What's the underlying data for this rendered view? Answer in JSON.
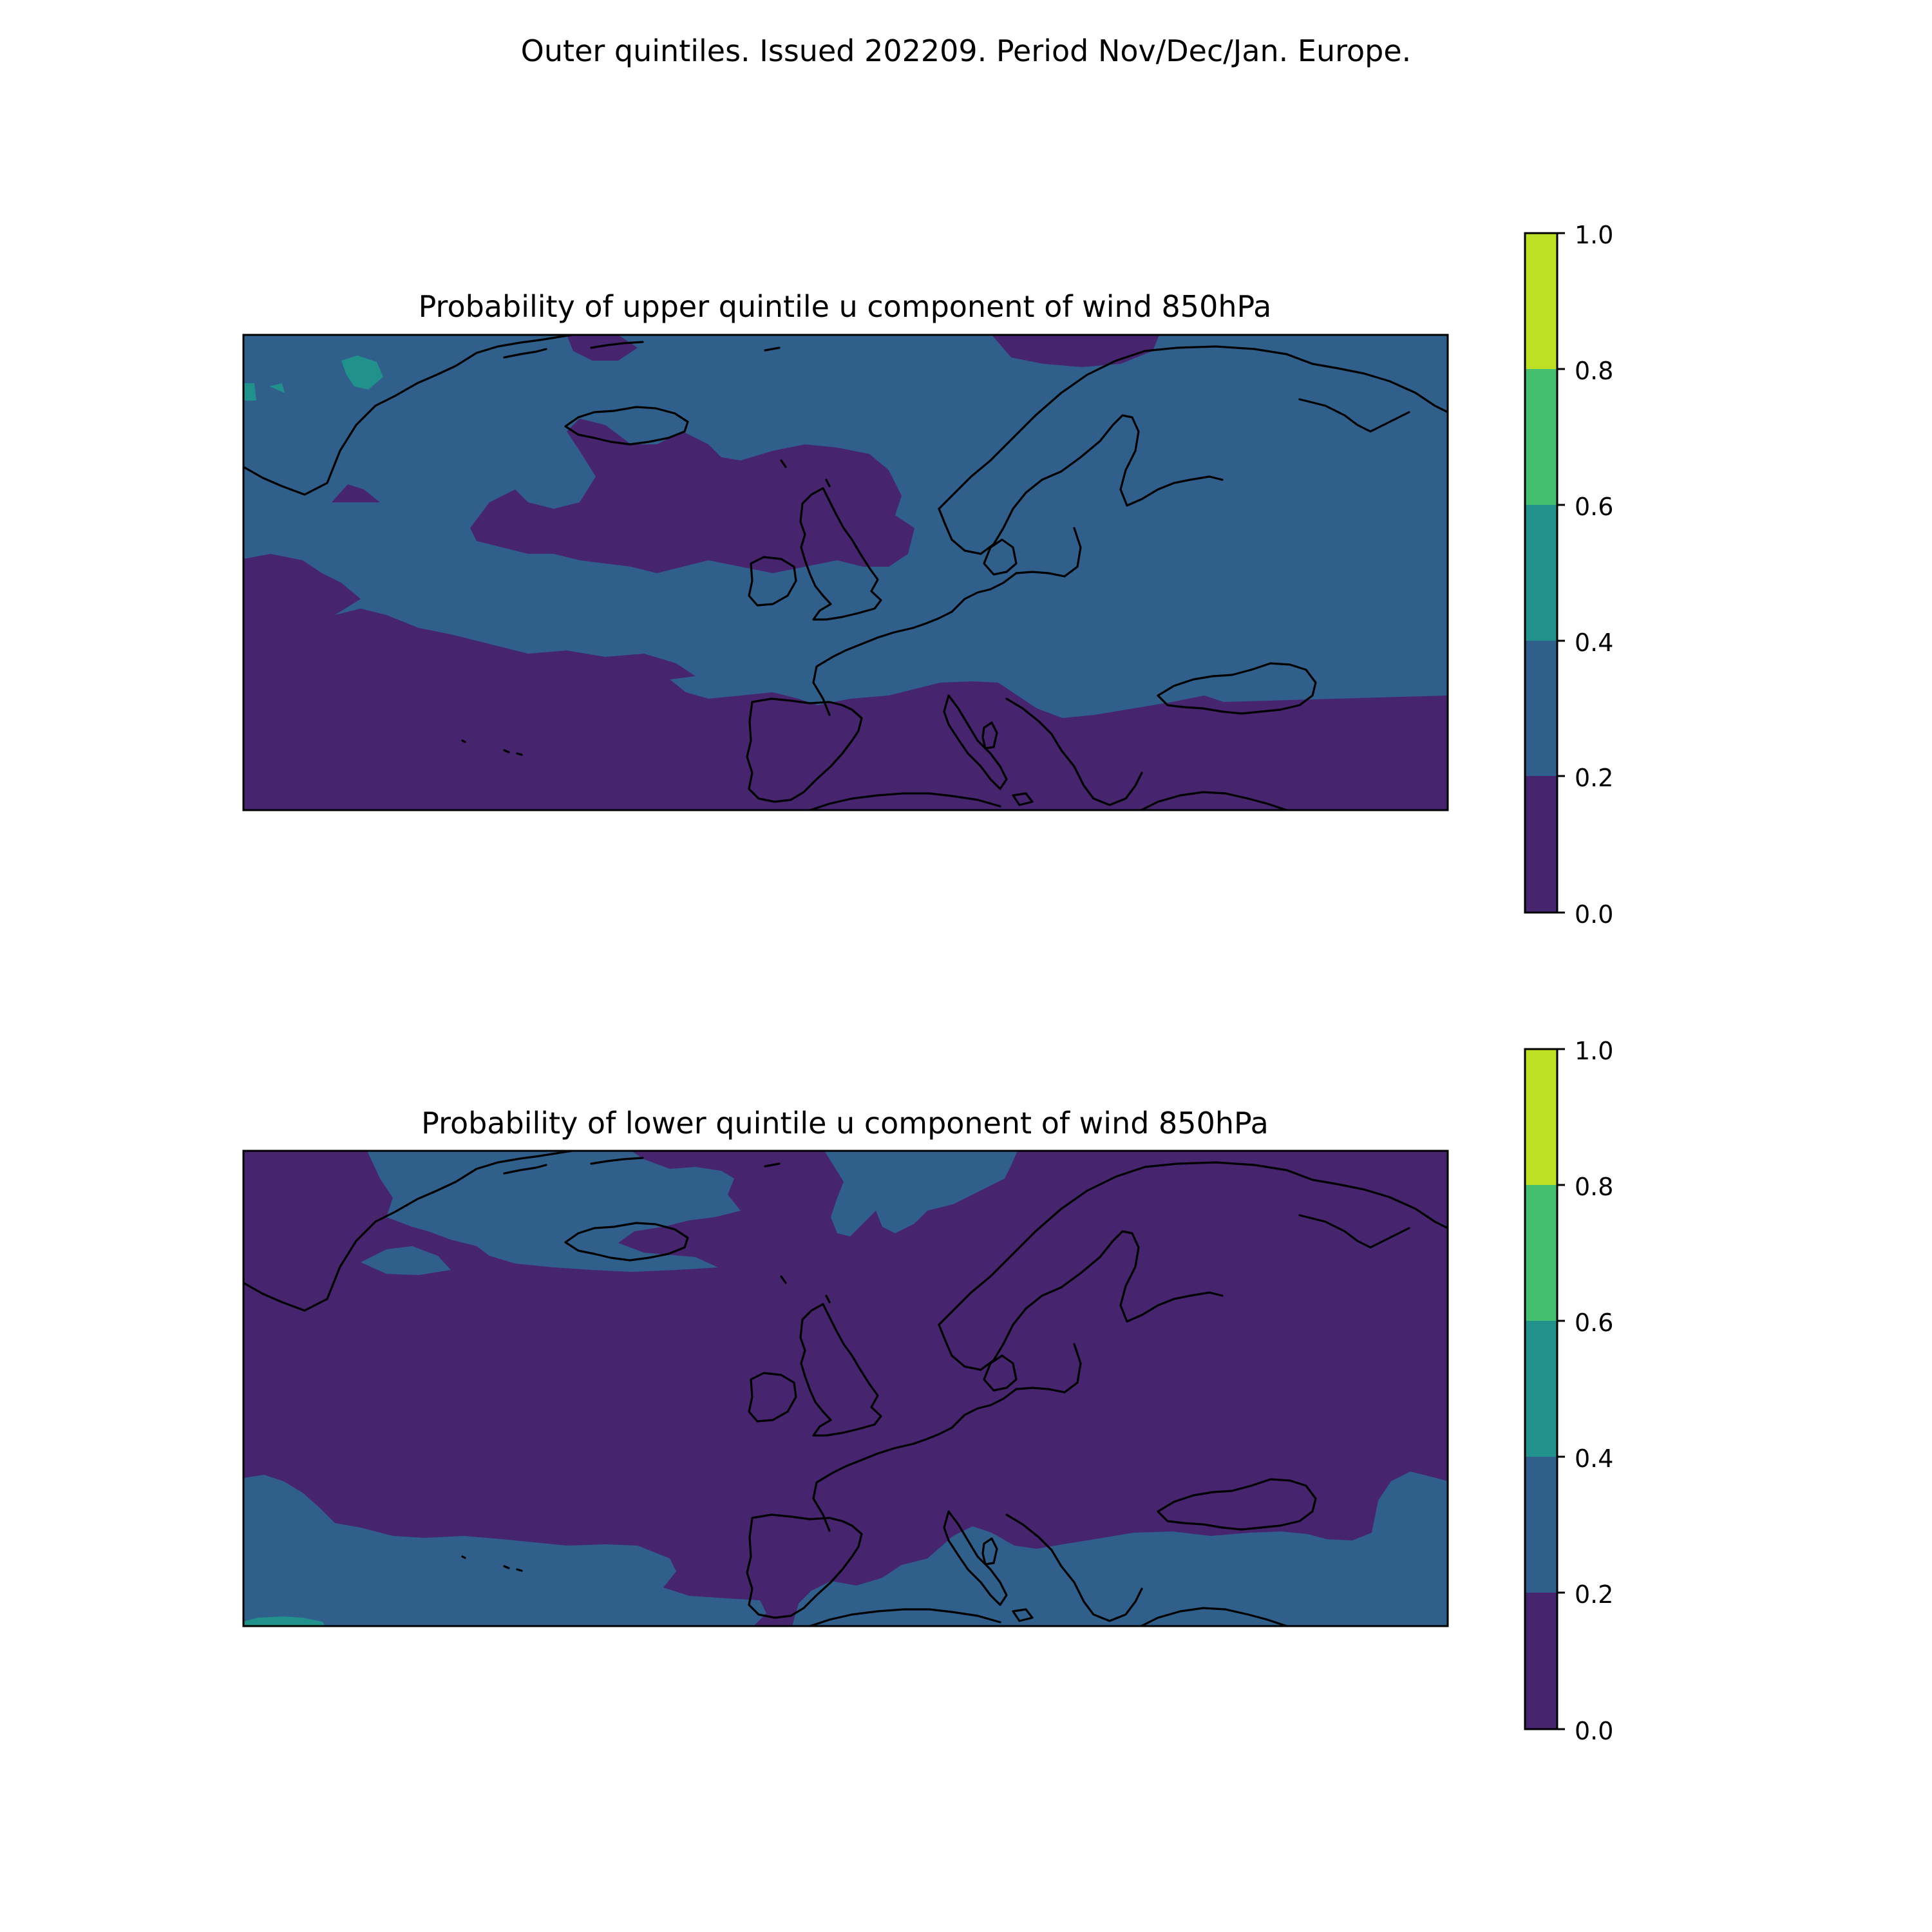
{
  "figure": {
    "suptitle": "Outer quintiles. Issued 202209. Period Nov/Dec/Jan. Europe."
  },
  "colors": {
    "levels": [
      "#46246e",
      "#315f8c",
      "#21918c",
      "#44bf70",
      "#bddf26"
    ]
  },
  "panels": [
    {
      "title": "Probability of upper quintile u component of wind 850hPa",
      "colorbar": {
        "ticks": [
          "0.0",
          "0.2",
          "0.4",
          "0.6",
          "0.8",
          "1.0"
        ]
      },
      "map_data": {
        "dominant_class": "0.2-0.4",
        "south_and_mid_atlantic_class": "0.0-0.2",
        "greenland_spot_class": "0.4-0.6"
      }
    },
    {
      "title": "Probability of lower quintile u component of wind 850hPa",
      "colorbar": {
        "ticks": [
          "0.0",
          "0.2",
          "0.4",
          "0.6",
          "0.8",
          "1.0"
        ]
      },
      "map_data": {
        "dominant_class": "0.0-0.2",
        "south_and_north_edge_class": "0.2-0.4",
        "southwest_corner_class": "0.4-0.6"
      }
    }
  ]
}
